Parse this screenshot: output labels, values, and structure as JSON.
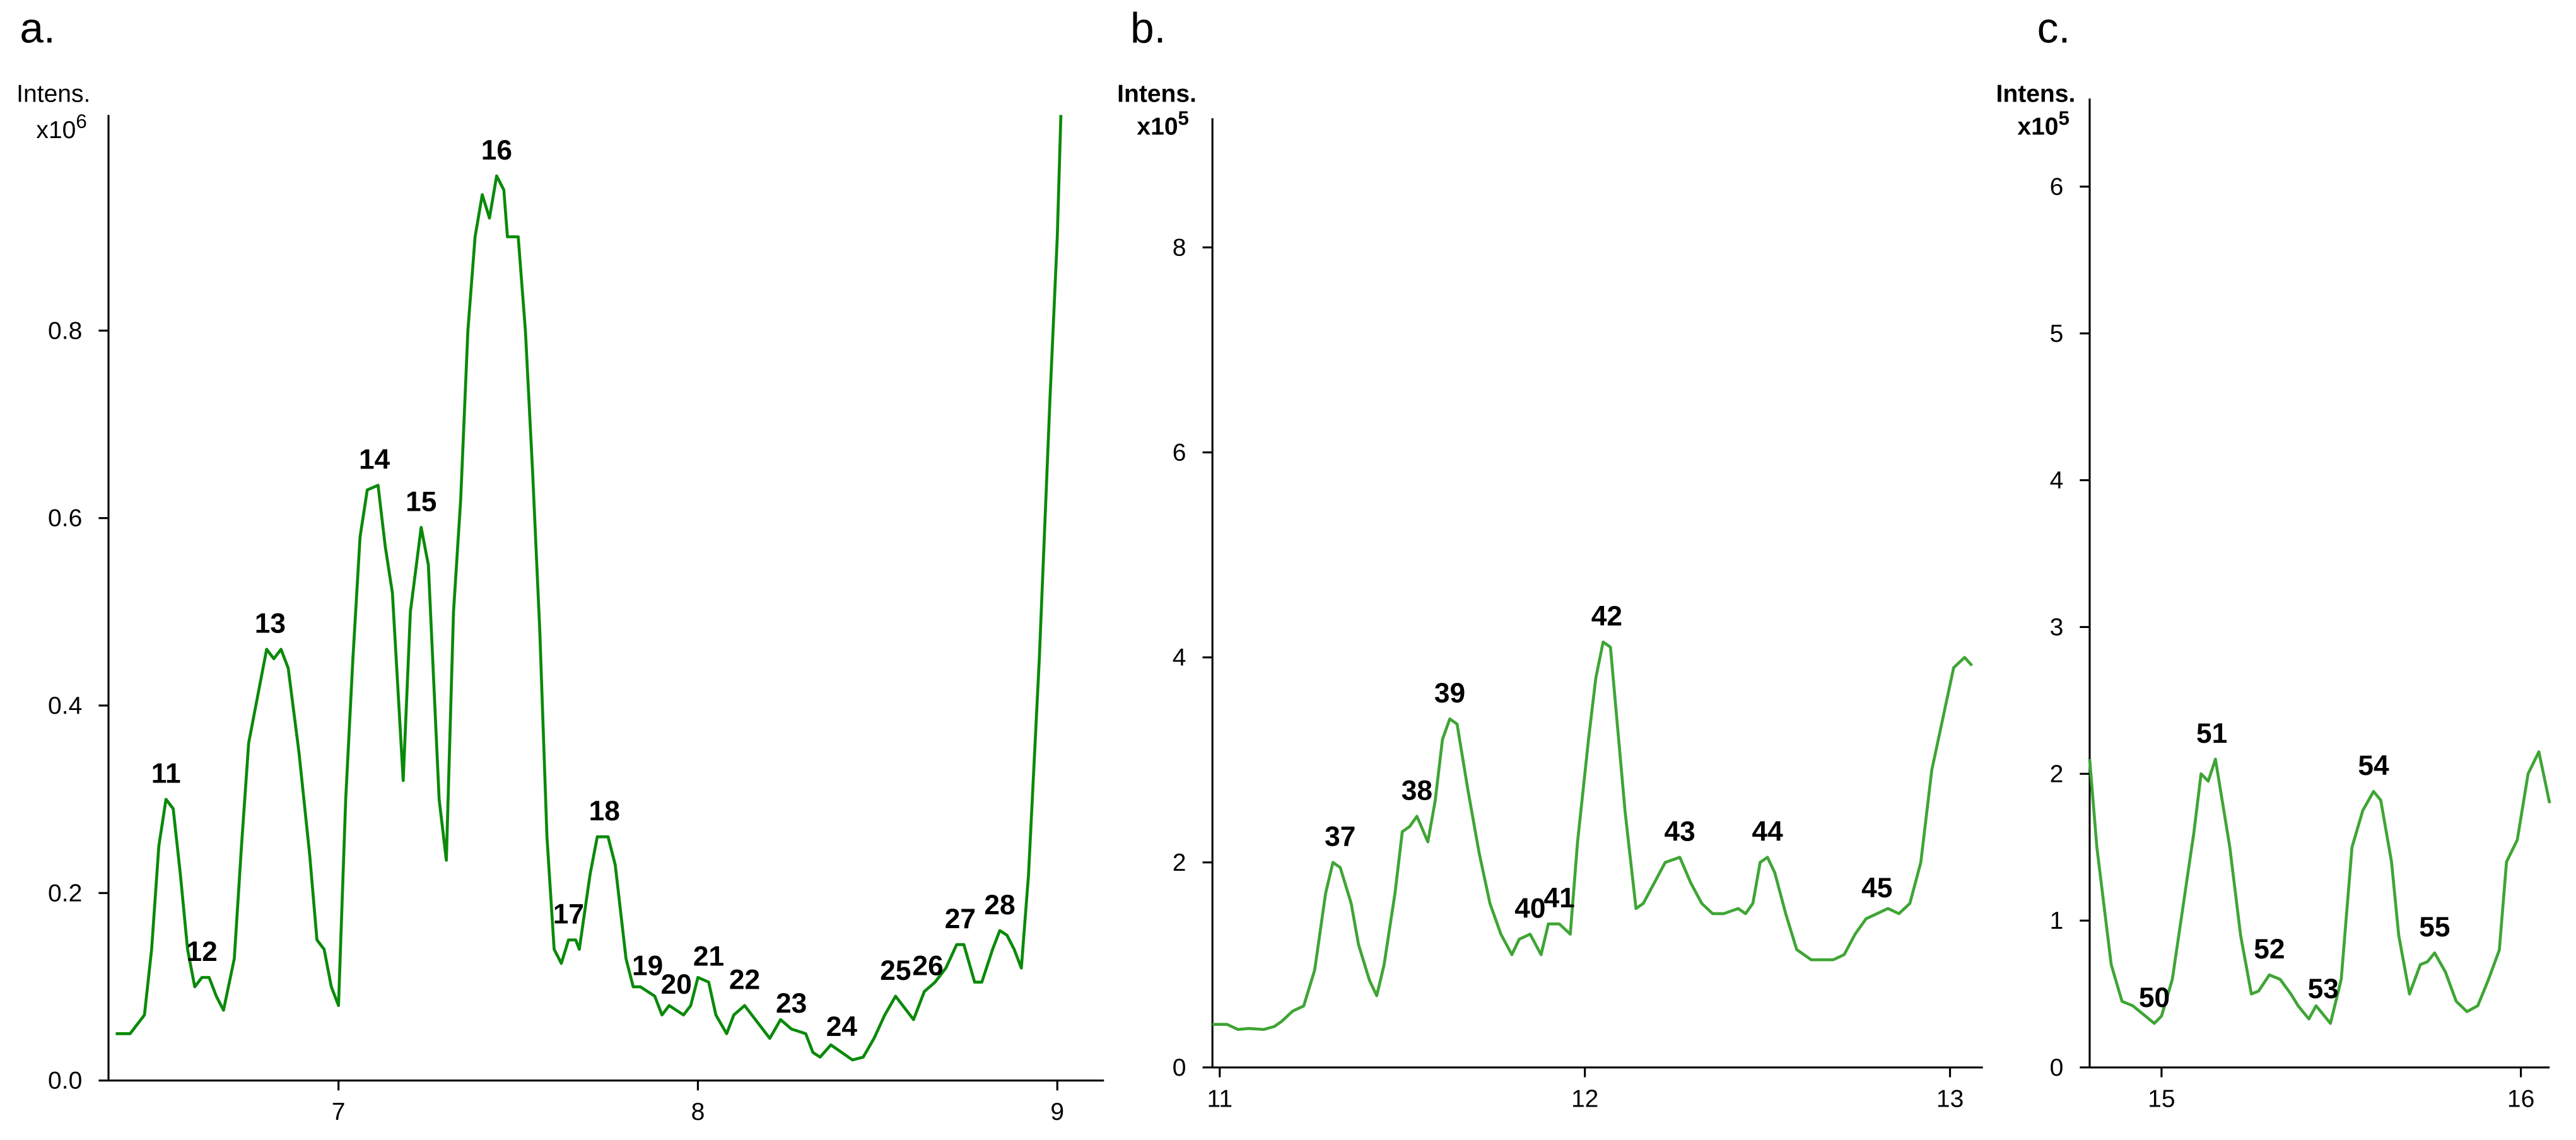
{
  "chart_data": [
    {
      "type": "line",
      "panel_label": "a.",
      "y_label": "Intens.",
      "y_multiplier": {
        "base": "x10",
        "exponent": "6"
      },
      "color": "#0a8a0a",
      "xlim": [
        6.36,
        9.13
      ],
      "ylim": [
        0,
        1.03
      ],
      "xticks": [
        7,
        8,
        9
      ],
      "yticks": [
        {
          "value": 0,
          "label": "0.0"
        },
        0.2,
        0.4,
        0.6,
        0.8
      ],
      "x": [
        6.38,
        6.42,
        6.46,
        6.48,
        6.5,
        6.52,
        6.54,
        6.56,
        6.58,
        6.6,
        6.62,
        6.64,
        6.66,
        6.68,
        6.71,
        6.73,
        6.75,
        6.78,
        6.8,
        6.82,
        6.84,
        6.86,
        6.89,
        6.92,
        6.94,
        6.96,
        6.98,
        7.0,
        7.02,
        7.04,
        7.06,
        7.08,
        7.11,
        7.13,
        7.15,
        7.18,
        7.2,
        7.23,
        7.25,
        7.28,
        7.3,
        7.32,
        7.34,
        7.36,
        7.38,
        7.4,
        7.42,
        7.44,
        7.46,
        7.47,
        7.5,
        7.52,
        7.54,
        7.56,
        7.58,
        7.6,
        7.62,
        7.64,
        7.66,
        7.67,
        7.7,
        7.72,
        7.75,
        7.77,
        7.8,
        7.82,
        7.84,
        7.86,
        7.88,
        7.9,
        7.92,
        7.94,
        7.96,
        7.98,
        8.0,
        8.03,
        8.05,
        8.08,
        8.1,
        8.13,
        8.16,
        8.2,
        8.23,
        8.26,
        8.3,
        8.32,
        8.34,
        8.37,
        8.4,
        8.43,
        8.46,
        8.49,
        8.52,
        8.55,
        8.58,
        8.6,
        8.63,
        8.66,
        8.69,
        8.72,
        8.74,
        8.77,
        8.79,
        8.82,
        8.84,
        8.86,
        8.88,
        8.9,
        8.92,
        8.95,
        8.98,
        9.0,
        9.01
      ],
      "values": [
        0.05,
        0.05,
        0.07,
        0.14,
        0.25,
        0.3,
        0.29,
        0.22,
        0.14,
        0.1,
        0.11,
        0.11,
        0.09,
        0.075,
        0.13,
        0.25,
        0.36,
        0.42,
        0.46,
        0.45,
        0.46,
        0.44,
        0.35,
        0.24,
        0.15,
        0.14,
        0.1,
        0.08,
        0.3,
        0.45,
        0.58,
        0.63,
        0.635,
        0.57,
        0.52,
        0.32,
        0.5,
        0.59,
        0.55,
        0.3,
        0.235,
        0.5,
        0.62,
        0.8,
        0.9,
        0.945,
        0.92,
        0.965,
        0.95,
        0.9,
        0.9,
        0.8,
        0.65,
        0.48,
        0.26,
        0.14,
        0.125,
        0.15,
        0.15,
        0.14,
        0.22,
        0.26,
        0.26,
        0.23,
        0.13,
        0.1,
        0.1,
        0.095,
        0.09,
        0.07,
        0.08,
        0.075,
        0.07,
        0.08,
        0.11,
        0.105,
        0.07,
        0.05,
        0.07,
        0.08,
        0.065,
        0.045,
        0.065,
        0.055,
        0.05,
        0.03,
        0.025,
        0.038,
        0.03,
        0.022,
        0.025,
        0.045,
        0.07,
        0.09,
        0.075,
        0.065,
        0.095,
        0.105,
        0.12,
        0.145,
        0.145,
        0.105,
        0.105,
        0.14,
        0.16,
        0.155,
        0.14,
        0.12,
        0.22,
        0.45,
        0.73,
        0.9,
        1.03
      ],
      "annotations": [
        {
          "text": "11",
          "x": 6.52,
          "y": 0.3
        },
        {
          "text": "12",
          "x": 6.62,
          "y": 0.11
        },
        {
          "text": "13",
          "x": 6.81,
          "y": 0.46
        },
        {
          "text": "14",
          "x": 7.1,
          "y": 0.635
        },
        {
          "text": "15",
          "x": 7.23,
          "y": 0.59
        },
        {
          "text": "16",
          "x": 7.44,
          "y": 0.965
        },
        {
          "text": "17",
          "x": 7.64,
          "y": 0.15
        },
        {
          "text": "18",
          "x": 7.74,
          "y": 0.26
        },
        {
          "text": "19",
          "x": 7.86,
          "y": 0.095
        },
        {
          "text": "20",
          "x": 7.94,
          "y": 0.075
        },
        {
          "text": "21",
          "x": 8.03,
          "y": 0.105
        },
        {
          "text": "22",
          "x": 8.13,
          "y": 0.08
        },
        {
          "text": "23",
          "x": 8.26,
          "y": 0.055
        },
        {
          "text": "24",
          "x": 8.4,
          "y": 0.03
        },
        {
          "text": "25",
          "x": 8.55,
          "y": 0.09
        },
        {
          "text": "26",
          "x": 8.64,
          "y": 0.095
        },
        {
          "text": "27",
          "x": 8.73,
          "y": 0.145
        },
        {
          "text": "28",
          "x": 8.84,
          "y": 0.16
        }
      ]
    },
    {
      "type": "line",
      "panel_label": "b.",
      "y_label": "Intens.",
      "y_multiplier": {
        "base": "x10",
        "exponent": "5"
      },
      "color": "#3fa535",
      "xlim": [
        10.98,
        13.09
      ],
      "ylim": [
        0,
        9.26
      ],
      "xticks": [
        11,
        12,
        13
      ],
      "yticks": [
        0,
        2,
        4,
        6,
        8
      ],
      "x": [
        10.98,
        11.02,
        11.05,
        11.08,
        11.12,
        11.15,
        11.17,
        11.2,
        11.23,
        11.26,
        11.29,
        11.31,
        11.33,
        11.36,
        11.38,
        11.41,
        11.43,
        11.45,
        11.48,
        11.5,
        11.52,
        11.54,
        11.57,
        11.59,
        11.61,
        11.63,
        11.65,
        11.68,
        11.71,
        11.74,
        11.77,
        11.8,
        11.82,
        11.85,
        11.88,
        11.9,
        11.93,
        11.96,
        11.98,
        12.01,
        12.03,
        12.05,
        12.07,
        12.09,
        12.11,
        12.14,
        12.16,
        12.19,
        12.22,
        12.26,
        12.29,
        12.32,
        12.35,
        12.38,
        12.42,
        12.44,
        12.46,
        12.48,
        12.5,
        12.52,
        12.55,
        12.58,
        12.62,
        12.65,
        12.68,
        12.71,
        12.74,
        12.77,
        12.8,
        12.83,
        12.86,
        12.89,
        12.92,
        12.95,
        12.98,
        13.01,
        13.04,
        13.06
      ],
      "values": [
        0.42,
        0.42,
        0.37,
        0.38,
        0.37,
        0.4,
        0.45,
        0.55,
        0.6,
        0.95,
        1.7,
        2.0,
        1.95,
        1.6,
        1.2,
        0.85,
        0.7,
        1.0,
        1.7,
        2.3,
        2.35,
        2.45,
        2.2,
        2.6,
        3.2,
        3.4,
        3.35,
        2.7,
        2.1,
        1.6,
        1.3,
        1.1,
        1.25,
        1.3,
        1.1,
        1.4,
        1.4,
        1.3,
        2.2,
        3.2,
        3.8,
        4.15,
        4.1,
        3.3,
        2.5,
        1.55,
        1.6,
        1.8,
        2.0,
        2.05,
        1.8,
        1.6,
        1.5,
        1.5,
        1.55,
        1.5,
        1.6,
        2.0,
        2.05,
        1.9,
        1.5,
        1.15,
        1.05,
        1.05,
        1.05,
        1.1,
        1.3,
        1.45,
        1.5,
        1.55,
        1.5,
        1.6,
        2.0,
        2.9,
        3.4,
        3.9,
        4.0,
        3.92
      ],
      "annotations": [
        {
          "text": "37",
          "x": 11.33,
          "y": 2.0
        },
        {
          "text": "38",
          "x": 11.54,
          "y": 2.45
        },
        {
          "text": "39",
          "x": 11.63,
          "y": 3.4
        },
        {
          "text": "40",
          "x": 11.85,
          "y": 1.3
        },
        {
          "text": "41",
          "x": 11.93,
          "y": 1.4
        },
        {
          "text": "42",
          "x": 12.06,
          "y": 4.15
        },
        {
          "text": "43",
          "x": 12.26,
          "y": 2.05
        },
        {
          "text": "44",
          "x": 12.5,
          "y": 2.05
        },
        {
          "text": "45",
          "x": 12.8,
          "y": 1.5
        }
      ]
    },
    {
      "type": "line",
      "panel_label": "c.",
      "y_label": "Intens.",
      "y_multiplier": {
        "base": "x10",
        "exponent": "5"
      },
      "color": "#3fa535",
      "xlim": [
        14.8,
        16.08
      ],
      "ylim": [
        0,
        6.6
      ],
      "xticks": [
        15,
        16
      ],
      "yticks": [
        0,
        1,
        2,
        3,
        4,
        5,
        6
      ],
      "x": [
        14.8,
        14.82,
        14.84,
        14.86,
        14.89,
        14.92,
        14.95,
        14.98,
        15.0,
        15.03,
        15.06,
        15.09,
        15.11,
        15.13,
        15.15,
        15.17,
        15.19,
        15.22,
        15.25,
        15.27,
        15.3,
        15.33,
        15.36,
        15.38,
        15.41,
        15.43,
        15.45,
        15.47,
        15.5,
        15.53,
        15.56,
        15.59,
        15.61,
        15.64,
        15.66,
        15.69,
        15.72,
        15.74,
        15.76,
        15.79,
        15.82,
        15.85,
        15.88,
        15.91,
        15.94,
        15.96,
        15.99,
        16.02,
        16.05,
        16.08
      ],
      "values": [
        2.1,
        1.5,
        1.1,
        0.7,
        0.45,
        0.42,
        0.36,
        0.3,
        0.35,
        0.6,
        1.1,
        1.6,
        2.0,
        1.95,
        2.1,
        1.8,
        1.5,
        0.9,
        0.5,
        0.52,
        0.63,
        0.6,
        0.5,
        0.42,
        0.33,
        0.42,
        0.36,
        0.3,
        0.6,
        1.5,
        1.75,
        1.88,
        1.82,
        1.4,
        0.9,
        0.5,
        0.7,
        0.72,
        0.78,
        0.65,
        0.45,
        0.38,
        0.42,
        0.6,
        0.8,
        1.4,
        1.55,
        2.0,
        2.15,
        1.8
      ],
      "annotations": [
        {
          "text": "50",
          "x": 14.98,
          "y": 0.3
        },
        {
          "text": "51",
          "x": 15.14,
          "y": 2.1
        },
        {
          "text": "52",
          "x": 15.3,
          "y": 0.63
        },
        {
          "text": "53",
          "x": 15.45,
          "y": 0.36
        },
        {
          "text": "54",
          "x": 15.59,
          "y": 1.88
        },
        {
          "text": "55",
          "x": 15.76,
          "y": 0.78
        }
      ]
    }
  ]
}
